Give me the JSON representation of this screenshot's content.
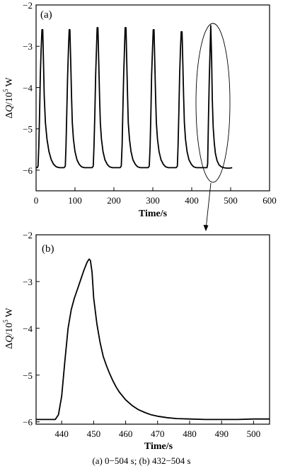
{
  "figure": {
    "caption": "(a) 0−504 s; (b) 432−504 s"
  },
  "chart_data": [
    {
      "type": "line",
      "panel_label": "(a)",
      "xlabel": "Time/s",
      "ylabel_prefix": "Δ",
      "ylabel_var": "Q",
      "ylabel_unit_base": "/10",
      "ylabel_unit_exp": "5",
      "ylabel_unit_suffix": " W",
      "xlim": [
        0,
        600
      ],
      "ylim": [
        -6.5,
        -2
      ],
      "xticks": [
        0,
        100,
        200,
        300,
        400,
        500,
        600
      ],
      "yticks": [
        -6,
        -5,
        -4,
        -3,
        -2
      ],
      "xtick_labels": [
        "0",
        "100",
        "200",
        "300",
        "400",
        "500",
        "600"
      ],
      "ytick_labels": [
        "−6",
        "−5",
        "−4",
        "−3",
        "−2"
      ],
      "grid": false,
      "series": [
        {
          "x": [
            0,
            3,
            5,
            7,
            9,
            11,
            13,
            15,
            17,
            19,
            21,
            24,
            28,
            33,
            39,
            45,
            52,
            60,
            68,
            72,
            75,
            77,
            79,
            81,
            83,
            85,
            87,
            89,
            91,
            93,
            96,
            100,
            105,
            111,
            117,
            124,
            132,
            140,
            144,
            147,
            149,
            151,
            153,
            155,
            157,
            159,
            161,
            163,
            165,
            168,
            172,
            177,
            183,
            189,
            196,
            204,
            212,
            216,
            219,
            221,
            223,
            225,
            227,
            229,
            231,
            233,
            235,
            237,
            240,
            244,
            249,
            255,
            261,
            268,
            276,
            284,
            288,
            291,
            293,
            295,
            297,
            299,
            301,
            303,
            305,
            307,
            309,
            312,
            316,
            321,
            327,
            333,
            340,
            348,
            356,
            360,
            363,
            365,
            367,
            369,
            371,
            373,
            375,
            377,
            379,
            381,
            384,
            388,
            393,
            399,
            405,
            412,
            420,
            428,
            432,
            439,
            441,
            443,
            445,
            447,
            449,
            451,
            453,
            455,
            458,
            461,
            465,
            470,
            476,
            482,
            490,
            498,
            504
          ],
          "y": [
            -5.94,
            -5.94,
            -5.9,
            -5.4,
            -4.6,
            -3.7,
            -3.1,
            -2.6,
            -2.6,
            -3.4,
            -4.2,
            -4.85,
            -5.25,
            -5.55,
            -5.75,
            -5.86,
            -5.92,
            -5.94,
            -5.94,
            -5.94,
            -5.9,
            -5.4,
            -4.6,
            -3.7,
            -3.1,
            -2.6,
            -2.6,
            -3.4,
            -4.2,
            -4.85,
            -5.25,
            -5.55,
            -5.75,
            -5.86,
            -5.92,
            -5.94,
            -5.94,
            -5.94,
            -5.94,
            -5.9,
            -5.4,
            -4.6,
            -3.7,
            -3.1,
            -2.55,
            -2.55,
            -3.4,
            -4.2,
            -4.85,
            -5.25,
            -5.55,
            -5.75,
            -5.86,
            -5.92,
            -5.94,
            -5.94,
            -5.94,
            -5.94,
            -5.9,
            -5.4,
            -4.6,
            -3.7,
            -3.1,
            -2.55,
            -2.55,
            -3.4,
            -4.2,
            -4.85,
            -5.25,
            -5.55,
            -5.75,
            -5.86,
            -5.92,
            -5.94,
            -5.94,
            -5.94,
            -5.94,
            -5.9,
            -5.4,
            -4.6,
            -3.7,
            -3.1,
            -2.6,
            -2.6,
            -3.4,
            -4.2,
            -4.85,
            -5.25,
            -5.55,
            -5.75,
            -5.86,
            -5.92,
            -5.94,
            -5.94,
            -5.94,
            -5.94,
            -5.9,
            -5.4,
            -4.6,
            -3.7,
            -3.1,
            -2.65,
            -2.65,
            -3.4,
            -4.2,
            -4.85,
            -5.25,
            -5.55,
            -5.75,
            -5.86,
            -5.92,
            -5.94,
            -5.94,
            -5.94,
            -5.94,
            -5.94,
            -5.85,
            -4.8,
            -3.8,
            -3.1,
            -2.5,
            -3.3,
            -4.3,
            -4.95,
            -5.35,
            -5.6,
            -5.77,
            -5.87,
            -5.92,
            -5.94,
            -5.95,
            -5.95,
            -5.94
          ]
        }
      ]
    },
    {
      "type": "line",
      "panel_label": "(b)",
      "xlabel": "Time/s",
      "ylabel_prefix": "Δ",
      "ylabel_var": "Q",
      "ylabel_unit_base": "/10",
      "ylabel_unit_exp": "5",
      "ylabel_unit_suffix": " W",
      "xlim": [
        432,
        505
      ],
      "ylim": [
        -6.05,
        -2
      ],
      "xticks": [
        440,
        450,
        460,
        470,
        480,
        490,
        500
      ],
      "yticks": [
        -6,
        -5,
        -4,
        -3,
        -2
      ],
      "xtick_labels": [
        "440",
        "450",
        "460",
        "470",
        "480",
        "490",
        "500"
      ],
      "ytick_labels": [
        "−6",
        "−5",
        "−4",
        "−3",
        "−2"
      ],
      "grid": false,
      "series": [
        {
          "x": [
            432,
            434,
            436,
            438,
            439,
            440,
            441,
            442,
            443,
            444,
            445,
            446,
            447,
            448,
            448.6,
            449,
            449.5,
            450,
            451,
            452,
            453,
            454,
            455,
            456,
            457,
            458,
            460,
            462,
            464,
            466,
            468,
            470,
            473,
            476,
            480,
            485,
            490,
            495,
            500,
            505
          ],
          "y": [
            -5.95,
            -5.95,
            -5.95,
            -5.95,
            -5.85,
            -5.45,
            -4.7,
            -4.0,
            -3.6,
            -3.35,
            -3.15,
            -2.95,
            -2.75,
            -2.58,
            -2.52,
            -2.55,
            -2.8,
            -3.35,
            -3.9,
            -4.3,
            -4.6,
            -4.8,
            -4.97,
            -5.12,
            -5.25,
            -5.36,
            -5.53,
            -5.65,
            -5.74,
            -5.8,
            -5.85,
            -5.88,
            -5.91,
            -5.93,
            -5.94,
            -5.95,
            -5.95,
            -5.95,
            -5.94,
            -5.94
          ]
        }
      ]
    }
  ]
}
